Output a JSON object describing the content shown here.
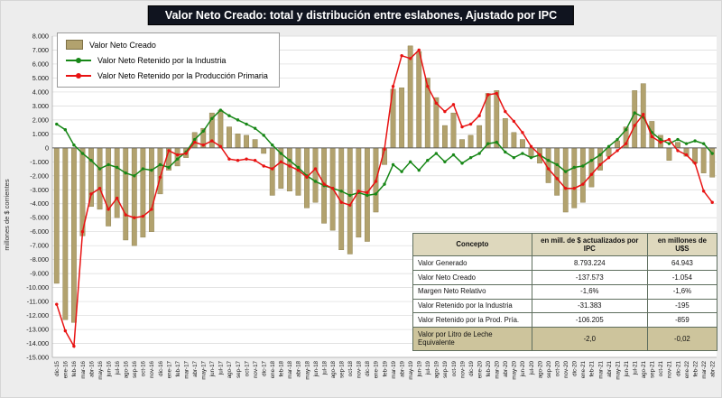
{
  "title": "Valor Neto Creado: total y distribución entre eslabones, Ajustado por IPC",
  "y_axis_title": "millones de $ corrientes",
  "colors": {
    "bar": "#b2a26e",
    "bar_border": "#857845",
    "industry": "#178717",
    "primary": "#e81212",
    "grid": "#d9d9d9",
    "zero_axis": "#595959",
    "axis_line": "#ababab",
    "tick_text": "#1a1a1a",
    "title_bg": "#10141f",
    "table_header_bg": "#ded8bd",
    "table_highlight_bg": "#cdc49c",
    "table_border": "#5e6e5e"
  },
  "chart_data": {
    "type": "bar",
    "subtype": "bar+line combo",
    "title": "Valor Neto Creado: total y distribución entre eslabones, Ajustado por IPC",
    "xlabel": "",
    "ylabel": "millones de $ corrientes",
    "ylim": [
      -15000,
      8000
    ],
    "ytick_step": 1000,
    "grid": true,
    "legend_position": "top-left",
    "categories": [
      "dic-15",
      "ene-16",
      "feb-16",
      "mar-16",
      "abr-16",
      "may-16",
      "jun-16",
      "jul-16",
      "ago-16",
      "sep-16",
      "oct-16",
      "nov-16",
      "dic-16",
      "ene-17",
      "feb-17",
      "mar-17",
      "abr-17",
      "may-17",
      "jun-17",
      "jul-17",
      "ago-17",
      "sep-17",
      "oct-17",
      "nov-17",
      "dic-17",
      "ene-18",
      "feb-18",
      "mar-18",
      "abr-18",
      "may-18",
      "jun-18",
      "jul-18",
      "ago-18",
      "sep-18",
      "oct-18",
      "nov-18",
      "dic-18",
      "ene-19",
      "feb-19",
      "mar-19",
      "abr-19",
      "may-19",
      "jun-19",
      "jul-19",
      "ago-19",
      "sep-19",
      "oct-19",
      "nov-19",
      "dic-19",
      "ene-20",
      "feb-20",
      "mar-20",
      "abr-20",
      "may-20",
      "jun-20",
      "jul-20",
      "ago-20",
      "sep-20",
      "oct-20",
      "nov-20",
      "dic-20",
      "ene-21",
      "feb-21",
      "mar-21",
      "abr-21",
      "may-21",
      "jun-21",
      "jul-21",
      "ago-21",
      "sep-21",
      "oct-21",
      "nov-21",
      "dic-21",
      "ene-22",
      "feb-22",
      "mar-22",
      "abr-22"
    ],
    "series": [
      {
        "name": "Valor Neto Creado",
        "type": "bar",
        "values": [
          -9700,
          -12300,
          -12500,
          -6300,
          -4200,
          -4400,
          -5600,
          -5000,
          -6600,
          -7000,
          -6400,
          -6000,
          -3300,
          -1600,
          -1300,
          -700,
          1100,
          1400,
          2500,
          2700,
          1500,
          1000,
          900,
          600,
          -400,
          -3400,
          -2900,
          -3100,
          -3400,
          -4300,
          -3900,
          -5400,
          -5900,
          -7300,
          -7600,
          -6400,
          -6700,
          -4600,
          -1200,
          4200,
          4300,
          7300,
          6900,
          5000,
          3600,
          1600,
          2500,
          600,
          900,
          1600,
          3900,
          4100,
          2100,
          1100,
          600,
          -600,
          -1100,
          -2500,
          -3400,
          -4600,
          -4300,
          -3900,
          -2800,
          -1600,
          -600,
          500,
          1500,
          4100,
          4600,
          1900,
          900,
          -900,
          400,
          -600,
          -1100,
          -1800,
          -2100
        ]
      },
      {
        "name": "Valor Neto Retenido por la Industria",
        "type": "line",
        "values": [
          1700,
          1300,
          200,
          -400,
          -900,
          -1500,
          -1200,
          -1400,
          -1800,
          -2000,
          -1500,
          -1600,
          -1200,
          -1400,
          -800,
          -300,
          600,
          1200,
          2100,
          2700,
          2300,
          2000,
          1700,
          1400,
          900,
          200,
          -400,
          -900,
          -1400,
          -2000,
          -2400,
          -2700,
          -2900,
          -3100,
          -3400,
          -3200,
          -3400,
          -3300,
          -2600,
          -1200,
          -1700,
          -1000,
          -1600,
          -900,
          -400,
          -1000,
          -500,
          -1100,
          -700,
          -400,
          300,
          400,
          -300,
          -700,
          -400,
          -700,
          -500,
          -900,
          -1200,
          -1700,
          -1400,
          -1300,
          -900,
          -500,
          100,
          600,
          1300,
          2500,
          2200,
          1100,
          600,
          300,
          600,
          300,
          500,
          300,
          -400
        ]
      },
      {
        "name": "Valor Neto Retenido por la Producción Primaria",
        "type": "line",
        "values": [
          -11200,
          -13100,
          -14200,
          -6000,
          -3300,
          -2900,
          -4400,
          -3600,
          -4800,
          -5000,
          -4900,
          -4400,
          -2100,
          -200,
          -500,
          -400,
          400,
          200,
          500,
          100,
          -800,
          -900,
          -800,
          -900,
          -1300,
          -1500,
          -1000,
          -1300,
          -1600,
          -2100,
          -1500,
          -2600,
          -2900,
          -3900,
          -4100,
          -3100,
          -3200,
          -2400,
          -100,
          4400,
          6600,
          6400,
          7000,
          4400,
          3200,
          2600,
          3100,
          1500,
          1700,
          2300,
          3800,
          3900,
          2600,
          1900,
          1100,
          100,
          -500,
          -1500,
          -2200,
          -2900,
          -2900,
          -2600,
          -1900,
          -1200,
          -700,
          -200,
          300,
          1600,
          2400,
          800,
          400,
          600,
          -200,
          -500,
          -1100,
          -3100,
          -3900
        ]
      }
    ]
  },
  "table": {
    "headers": [
      "Concepto",
      "en mill. de $ actualizados por IPC",
      "en millones de U$S"
    ],
    "rows": [
      [
        "Valor Generado",
        "8.793.224",
        "64.943"
      ],
      [
        "Valor Neto Creado",
        "-137.573",
        "-1.054"
      ],
      [
        "Margen Neto Relativo",
        "-1,6%",
        "-1,6%"
      ],
      [
        "Valor Retenido por la Industria",
        "-31.383",
        "-195"
      ],
      [
        "Valor Retenido por la Prod. Pría.",
        "-106.205",
        "-859"
      ],
      [
        "Valor por Litro de Leche Equivalente",
        "-2,0",
        "-0,02"
      ]
    ],
    "highlight_last_row": true
  }
}
